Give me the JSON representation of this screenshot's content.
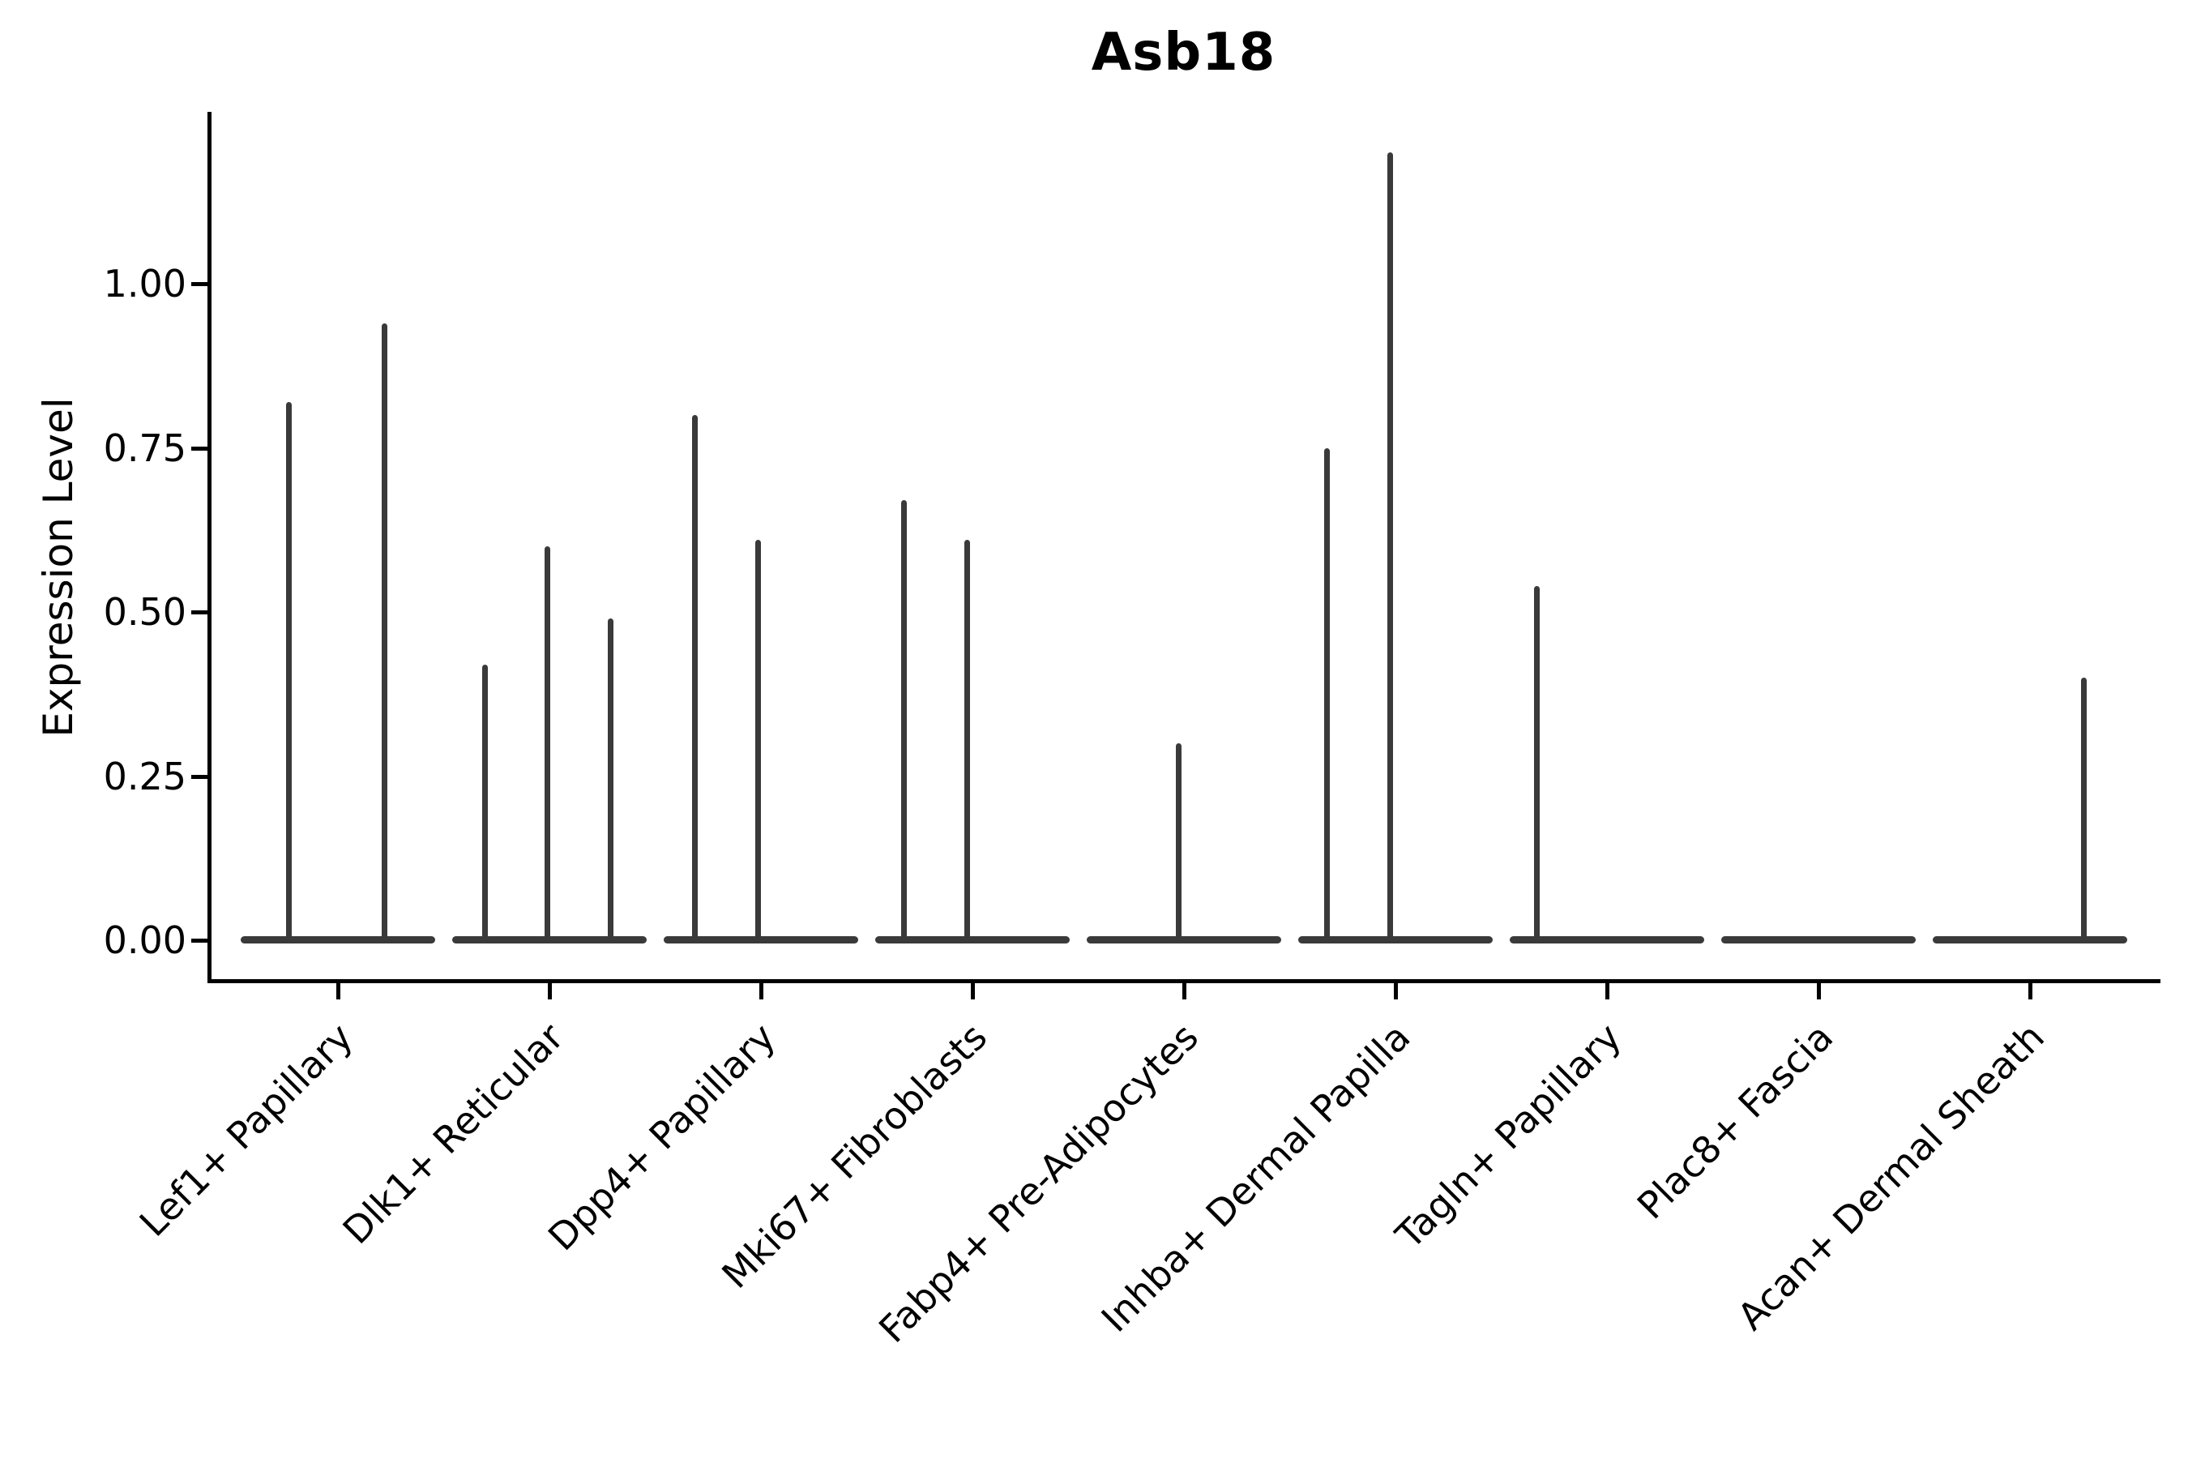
{
  "title": "Asb18",
  "chart_data": {
    "type": "violin",
    "title": "Asb18",
    "xlabel": "",
    "ylabel": "Expression Level",
    "categories": [
      "Lef1+ Papillary",
      "Dlk1+ Reticular",
      "Dpp4+ Papillary",
      "Mki67+ Fibroblasts",
      "Fabp4+ Pre-Adipocytes",
      "Inhba+ Dermal Papilla",
      "Tagln+ Papillary",
      "Plac8+ Fascia",
      "Acan+ Dermal Sheath"
    ],
    "ylim": [
      0,
      1.26
    ],
    "yticks": [
      0.0,
      0.25,
      0.5,
      0.75,
      1.0
    ],
    "ytick_labels": [
      "0.00",
      "0.25",
      "0.50",
      "0.75",
      "1.00"
    ],
    "baseline_value": 0.0,
    "grid": false,
    "legend": "none",
    "violins": [
      {
        "category": "Lef1+ Papillary",
        "spikes": [
          {
            "dx": -61,
            "max": 0.82
          },
          {
            "dx": 57,
            "max": 0.94
          }
        ]
      },
      {
        "category": "Dlk1+ Reticular",
        "spikes": [
          {
            "dx": -80,
            "max": 0.42
          },
          {
            "dx": -3,
            "max": 0.6
          },
          {
            "dx": 75,
            "max": 0.49
          }
        ]
      },
      {
        "category": "Dpp4+ Papillary",
        "spikes": [
          {
            "dx": -82,
            "max": 0.8
          },
          {
            "dx": -4,
            "max": 0.61
          }
        ]
      },
      {
        "category": "Mki67+ Fibroblasts",
        "spikes": [
          {
            "dx": -85,
            "max": 0.67
          },
          {
            "dx": -7,
            "max": 0.61
          }
        ]
      },
      {
        "category": "Fabp4+ Pre-Adipocytes",
        "spikes": [
          {
            "dx": -7,
            "max": 0.3
          }
        ]
      },
      {
        "category": "Inhba+ Dermal Papilla",
        "spikes": [
          {
            "dx": -85,
            "max": 0.75
          },
          {
            "dx": -7,
            "max": 1.2
          }
        ]
      },
      {
        "category": "Tagln+ Papillary",
        "spikes": [
          {
            "dx": -87,
            "max": 0.54
          }
        ]
      },
      {
        "category": "Plac8+ Fascia",
        "spikes": []
      },
      {
        "category": "Acan+ Dermal Sheath",
        "spikes": [
          {
            "dx": 66,
            "max": 0.4
          }
        ]
      }
    ]
  },
  "colors": {
    "violin": "#3a3a3a",
    "axis": "#000000",
    "text": "#000000",
    "background": "#ffffff"
  }
}
